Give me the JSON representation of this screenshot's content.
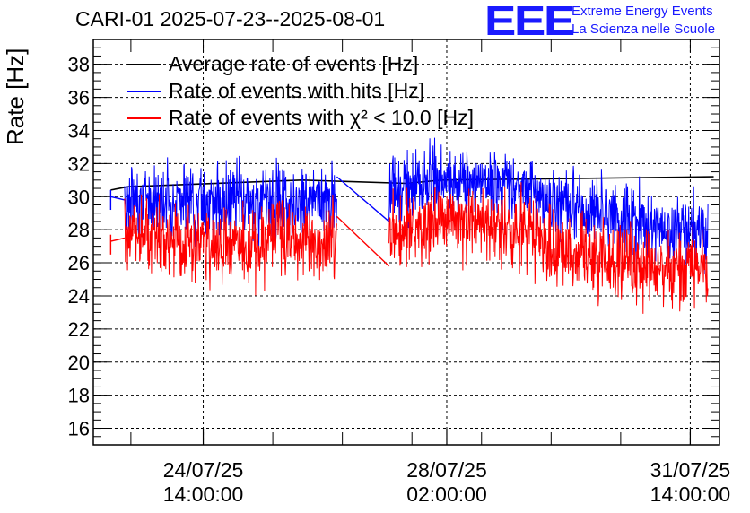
{
  "header": {
    "title": "CARI-01 2025-07-23--2025-08-01"
  },
  "logo": {
    "mark": "EEE",
    "line1": "Extreme Energy Events",
    "line2": "La Scienza nelle Scuole",
    "color": "#1a1aff"
  },
  "chart_data": {
    "type": "line",
    "ylabel": "Rate [Hz]",
    "ylim": [
      15,
      39.5
    ],
    "yticks": [
      16,
      18,
      20,
      22,
      24,
      26,
      28,
      30,
      32,
      34,
      36,
      38
    ],
    "xlim_days_from_start": [
      0,
      9.0
    ],
    "x_tick_labels": [
      {
        "date": "24/07/25",
        "time": "14:00:00"
      },
      {
        "date": "28/07/25",
        "time": "02:00:00"
      },
      {
        "date": "31/07/25",
        "time": "14:00:00"
      }
    ],
    "grid": true,
    "legend_position": "top-left",
    "series": [
      {
        "name": "Average rate of events [Hz]",
        "color": "#000000",
        "x": [
          "2025-07-23 06:00",
          "2025-07-23 12:00",
          "2025-07-26 00:00",
          "2025-07-27 12:00",
          "2025-07-28 00:00",
          "2025-07-31 22:00"
        ],
        "values": [
          30.4,
          30.6,
          31.0,
          30.8,
          31.0,
          31.2
        ]
      },
      {
        "name": "Rate of events with hits [Hz]",
        "color": "#0000ff",
        "x": [
          "2025-07-23 06:00",
          "2025-07-23 12:00",
          "2025-07-24 00:00",
          "2025-07-25 00:00",
          "2025-07-25 18:00",
          "2025-07-26 06:00",
          "2025-07-26 12:00",
          "2025-07-27 00:00",
          "2025-07-27 06:00",
          "2025-07-27 18:00",
          "2025-07-28 12:00",
          "2025-07-29 00:00",
          "2025-07-29 12:00",
          "2025-07-30 00:00",
          "2025-07-30 12:00",
          "2025-07-31 00:00",
          "2025-07-31 12:00",
          "2025-07-31 20:00"
        ],
        "values": [
          30.0,
          29.8,
          29.9,
          29.6,
          29.8,
          29.8,
          29.6,
          29.2,
          30.5,
          30.7,
          31.0,
          30.9,
          29.9,
          29.2,
          28.9,
          28.1,
          28.0,
          28.0
        ]
      },
      {
        "name": "Rate of events with χ² < 10.0 [Hz]",
        "color": "#ff0000",
        "x": [
          "2025-07-23 06:00",
          "2025-07-23 12:00",
          "2025-07-24 00:00",
          "2025-07-25 00:00",
          "2025-07-25 18:00",
          "2025-07-26 06:00",
          "2025-07-26 12:00",
          "2025-07-27 00:00",
          "2025-07-27 06:00",
          "2025-07-27 18:00",
          "2025-07-28 12:00",
          "2025-07-29 00:00",
          "2025-07-29 12:00",
          "2025-07-30 00:00",
          "2025-07-30 12:00",
          "2025-07-31 00:00",
          "2025-07-31 12:00",
          "2025-07-31 20:00"
        ],
        "values": [
          27.3,
          27.5,
          27.4,
          27.1,
          27.4,
          27.4,
          27.2,
          26.7,
          27.8,
          28.2,
          28.5,
          28.1,
          27.2,
          26.6,
          26.1,
          25.6,
          25.6,
          25.6
        ]
      }
    ]
  }
}
